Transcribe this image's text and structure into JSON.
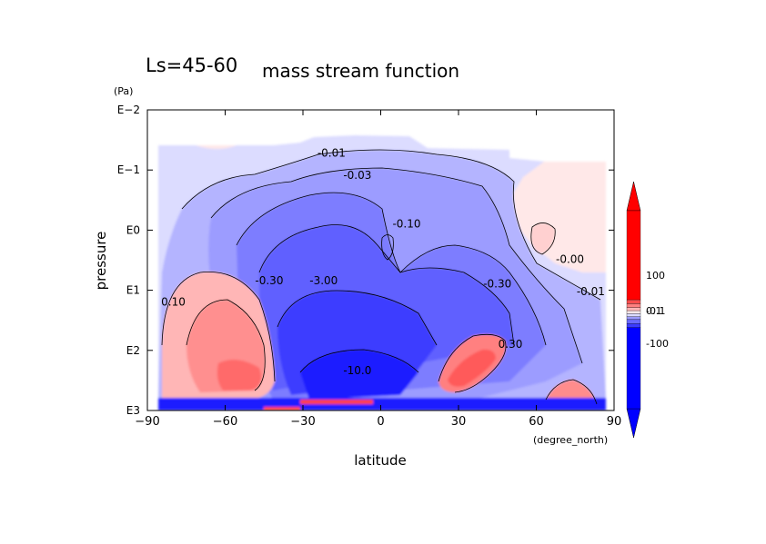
{
  "title": {
    "prefix": "Ls=45-60",
    "main": "mass stream function"
  },
  "chart_data": {
    "type": "heatmap",
    "title": "Ls=45-60 mass stream function",
    "xlabel": "latitude",
    "xunits": "(degree_north)",
    "ylabel": "pressure",
    "yunits": "(Pa)",
    "xlim": [
      -90,
      90
    ],
    "xticks": [
      {
        "value": -90,
        "label": "−90"
      },
      {
        "value": -60,
        "label": "−60"
      },
      {
        "value": -30,
        "label": "−30"
      },
      {
        "value": 0,
        "label": "0"
      },
      {
        "value": 30,
        "label": "30"
      },
      {
        "value": 60,
        "label": "60"
      },
      {
        "value": 90,
        "label": "90"
      }
    ],
    "yaxis_scale": "log",
    "yticks": [
      {
        "value": 0.01,
        "label": "E−2"
      },
      {
        "value": 0.1,
        "label": "E−1"
      },
      {
        "value": 1,
        "label": "E0"
      },
      {
        "value": 10,
        "label": "E1"
      },
      {
        "value": 100,
        "label": "E2"
      },
      {
        "value": 1000,
        "label": "E3"
      }
    ],
    "contour_labels": [
      {
        "text": "-0.01",
        "lat": -19,
        "p": 0.06
      },
      {
        "text": "-0.03",
        "lat": -9,
        "p": 0.14
      },
      {
        "text": "-0.10",
        "lat": 10,
        "p": 0.9
      },
      {
        "text": "-0.30",
        "lat": -43,
        "p": 8
      },
      {
        "text": "-3.00",
        "lat": -22,
        "p": 8
      },
      {
        "text": "-0.30",
        "lat": 45,
        "p": 9
      },
      {
        "text": "-10.0",
        "lat": -9,
        "p": 250
      },
      {
        "text": "-0.00",
        "lat": 73,
        "p": 3.5
      },
      {
        "text": "-0.01",
        "lat": 81,
        "p": 12
      },
      {
        "text": "0.10",
        "lat": -80,
        "p": 18
      },
      {
        "text": "0.30",
        "lat": 50,
        "p": 90
      }
    ],
    "colorbar": {
      "labels": [
        "100",
        "0.1",
        "-0.1",
        "-100"
      ],
      "colors": [
        "#ff0000",
        "#ff4c4c",
        "#ff8080",
        "#ffb6b6",
        "#ffe8e8",
        "#dcdcff",
        "#9c9cff",
        "#6a6aff",
        "#3c3cff",
        "#0000ff"
      ]
    }
  }
}
